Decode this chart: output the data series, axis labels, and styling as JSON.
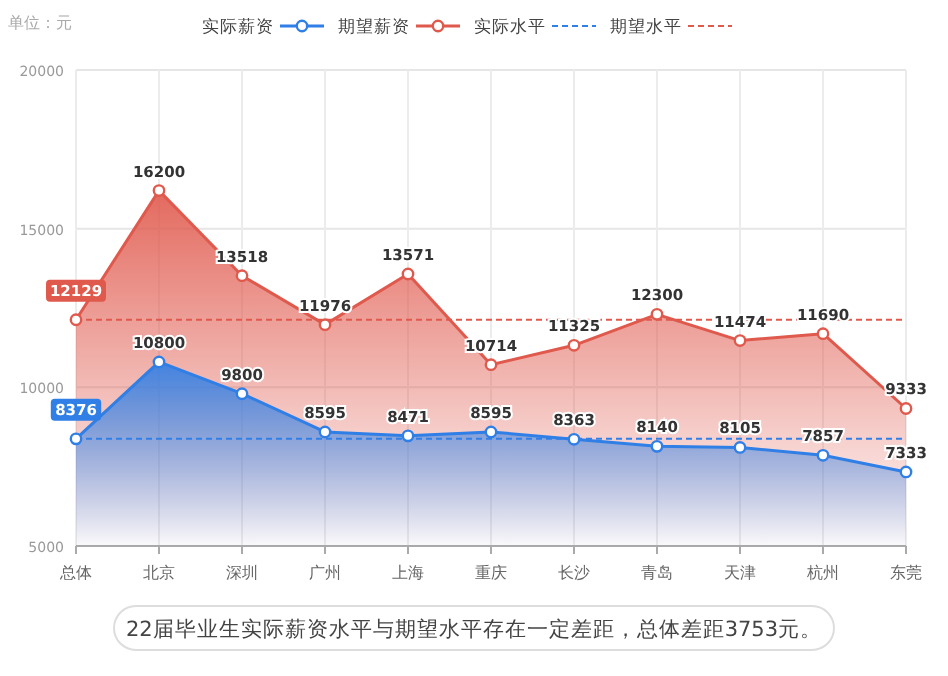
{
  "chart_data": {
    "type": "area",
    "title": null,
    "categories": [
      "总体",
      "北京",
      "深圳",
      "广州",
      "上海",
      "重庆",
      "长沙",
      "青岛",
      "天津",
      "杭州",
      "东莞"
    ],
    "series": [
      {
        "name": "实际薪资",
        "color": "#2f7fe6",
        "values": [
          8376,
          10800,
          9800,
          8595,
          8471,
          8595,
          8363,
          8140,
          8105,
          7857,
          7333
        ]
      },
      {
        "name": "期望薪资",
        "color": "#e0594d",
        "values": [
          12129,
          16200,
          13518,
          11976,
          13571,
          10714,
          11325,
          12300,
          11474,
          11690,
          9333
        ]
      }
    ],
    "ref_lines": [
      {
        "axis": "y",
        "value": 8376,
        "label": "实际水平",
        "color": "#2f7fe6",
        "line_style": "dashed"
      },
      {
        "axis": "y",
        "value": 12129,
        "label": "期望水平",
        "color": "#e0594d",
        "line_style": "dashed"
      }
    ],
    "ylim": [
      5000,
      20000
    ],
    "yticks": [
      5000,
      10000,
      15000,
      20000
    ],
    "ylabel": "单位：元",
    "annotations": [
      "22届毕业生实际薪资水平与期望水平存在一定差距，总体差距3753元。"
    ],
    "data_labels": true,
    "marker": "circle",
    "line_style": "solid",
    "grid": true,
    "legend": "top"
  }
}
